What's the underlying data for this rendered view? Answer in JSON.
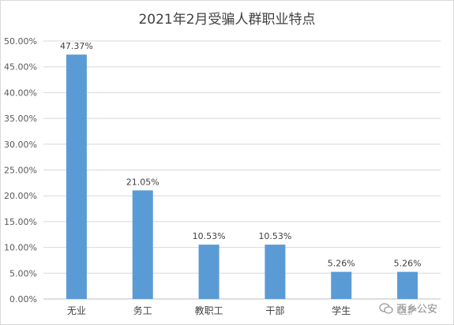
{
  "chart_data": {
    "type": "bar",
    "title": "2021年2月受骗人群职业特点",
    "categories": [
      "无业",
      "务工",
      "教职工",
      "干部",
      "学生",
      "医护"
    ],
    "values": [
      47.37,
      21.05,
      10.53,
      10.53,
      5.26,
      5.26
    ],
    "data_labels": [
      "47.37%",
      "21.05%",
      "10.53%",
      "10.53%",
      "5.26%",
      "5.26%"
    ],
    "ylim": [
      0,
      50
    ],
    "yticks": [
      "0.00%",
      "5.00%",
      "10.00%",
      "15.00%",
      "20.00%",
      "25.00%",
      "30.00%",
      "35.00%",
      "40.00%",
      "45.00%",
      "50.00%"
    ],
    "xlabel": "",
    "ylabel": "",
    "grid": true,
    "bar_color": "#5b9bd5"
  },
  "watermark": {
    "icon": "wechat-official-account-icon",
    "text": "西乡公安"
  }
}
